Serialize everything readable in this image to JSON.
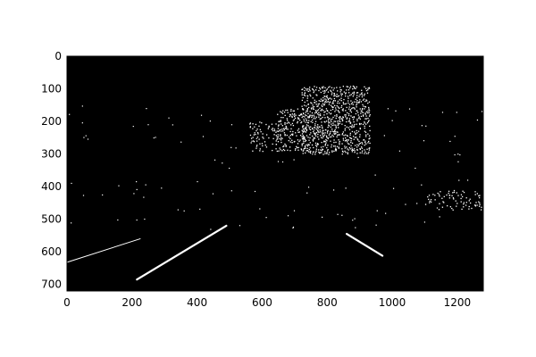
{
  "chart_data": {
    "type": "image",
    "title": "",
    "xlabel": "",
    "ylabel": "",
    "xlim": [
      0,
      1280
    ],
    "ylim": [
      720,
      0
    ],
    "x_ticks": [
      0,
      200,
      400,
      600,
      800,
      1000,
      1200
    ],
    "y_ticks": [
      0,
      100,
      200,
      300,
      400,
      500,
      600,
      700
    ],
    "grid": false,
    "colors": {
      "background": "#000000",
      "pixels": "#ffffff",
      "figure": "#ffffff"
    },
    "lane_lines": [
      {
        "x1": 0,
        "y1": 632,
        "x2": 225,
        "y2": 560
      },
      {
        "x1": 215,
        "y1": 685,
        "x2": 490,
        "y2": 520
      },
      {
        "x1": 860,
        "y1": 545,
        "x2": 970,
        "y2": 612
      }
    ],
    "dense_regions": [
      {
        "x1": 720,
        "y1": 90,
        "x2": 930,
        "y2": 300,
        "density": 0.45
      },
      {
        "x1": 640,
        "y1": 160,
        "x2": 730,
        "y2": 290,
        "density": 0.3
      },
      {
        "x1": 560,
        "y1": 200,
        "x2": 650,
        "y2": 290,
        "density": 0.2
      },
      {
        "x1": 1100,
        "y1": 410,
        "x2": 1280,
        "y2": 470,
        "density": 0.15
      }
    ]
  }
}
